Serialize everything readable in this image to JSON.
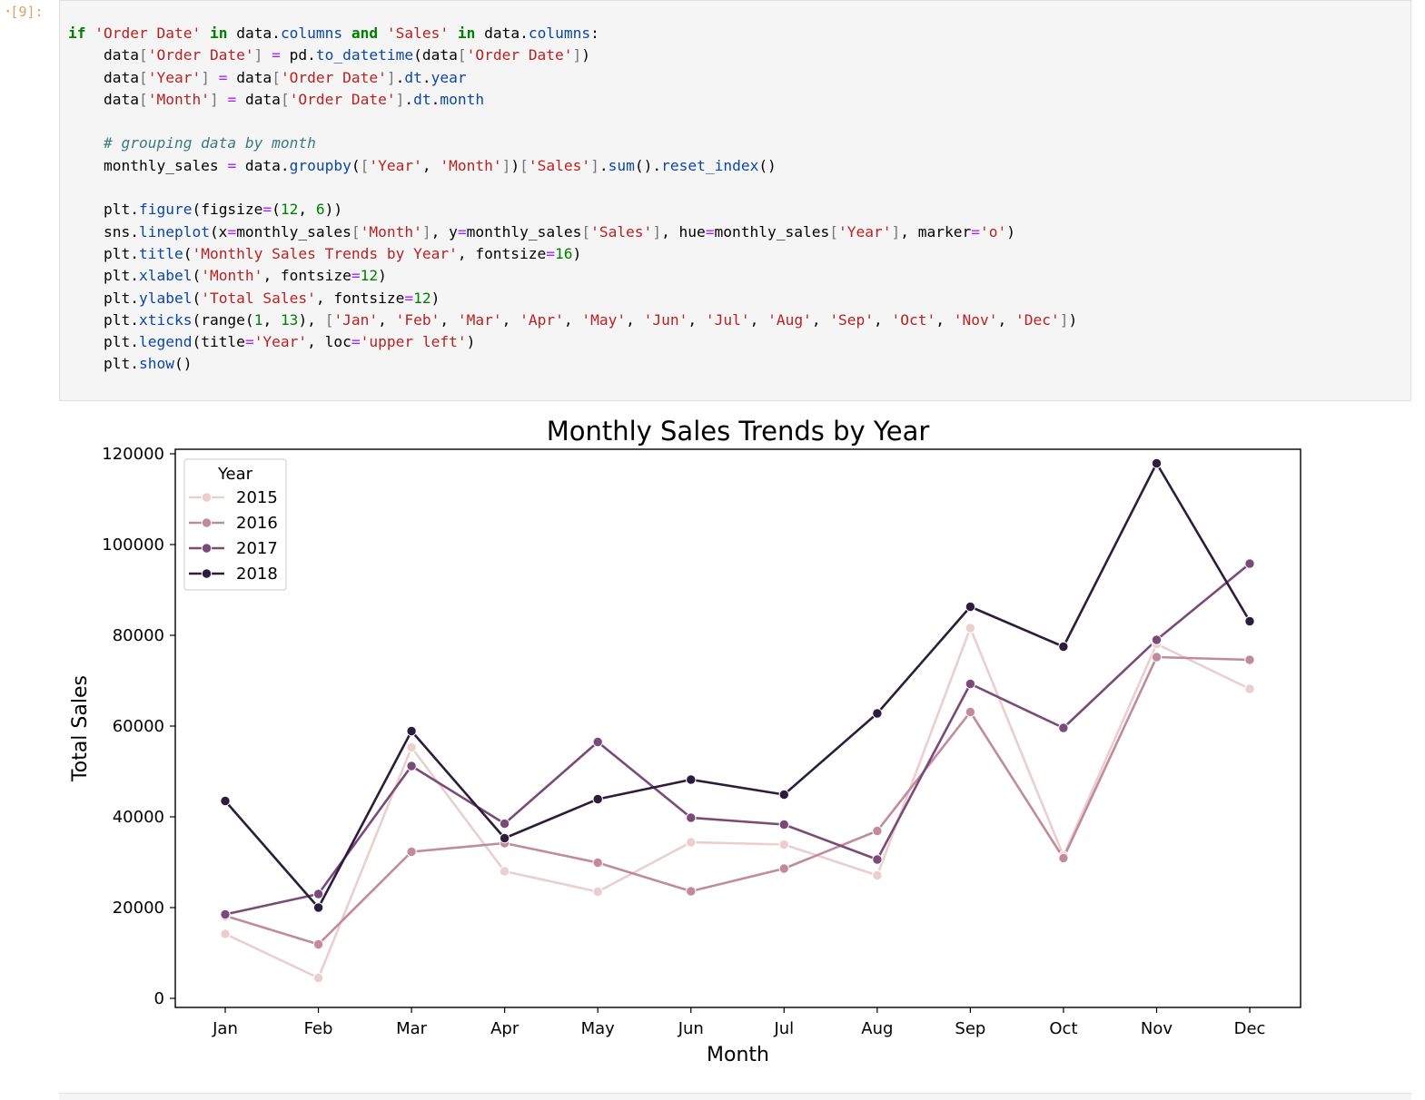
{
  "cell": {
    "prompt": "[9]:",
    "code_lines": [
      [
        [
          "kw",
          "if"
        ],
        [
          "t",
          " "
        ],
        [
          "str",
          "'Order Date'"
        ],
        [
          "t",
          " "
        ],
        [
          "kw",
          "in"
        ],
        [
          "t",
          " data."
        ],
        [
          "attr",
          "columns"
        ],
        [
          "t",
          " "
        ],
        [
          "kw",
          "and"
        ],
        [
          "t",
          " "
        ],
        [
          "str",
          "'Sales'"
        ],
        [
          "t",
          " "
        ],
        [
          "kw",
          "in"
        ],
        [
          "t",
          " data."
        ],
        [
          "attr",
          "columns"
        ],
        [
          "t",
          ":"
        ]
      ],
      [
        [
          "t",
          "    data"
        ],
        [
          "br",
          "["
        ],
        [
          "str",
          "'Order Date'"
        ],
        [
          "br",
          "]"
        ],
        [
          "t",
          " "
        ],
        [
          "op",
          "="
        ],
        [
          "t",
          " pd."
        ],
        [
          "attr",
          "to_datetime"
        ],
        [
          "t",
          "(data"
        ],
        [
          "br",
          "["
        ],
        [
          "str",
          "'Order Date'"
        ],
        [
          "br",
          "]"
        ],
        [
          "t",
          ")"
        ]
      ],
      [
        [
          "t",
          "    data"
        ],
        [
          "br",
          "["
        ],
        [
          "str",
          "'Year'"
        ],
        [
          "br",
          "]"
        ],
        [
          "t",
          " "
        ],
        [
          "op",
          "="
        ],
        [
          "t",
          " data"
        ],
        [
          "br",
          "["
        ],
        [
          "str",
          "'Order Date'"
        ],
        [
          "br",
          "]"
        ],
        [
          "t",
          "."
        ],
        [
          "attr",
          "dt"
        ],
        [
          "t",
          "."
        ],
        [
          "attr",
          "year"
        ]
      ],
      [
        [
          "t",
          "    data"
        ],
        [
          "br",
          "["
        ],
        [
          "str",
          "'Month'"
        ],
        [
          "br",
          "]"
        ],
        [
          "t",
          " "
        ],
        [
          "op",
          "="
        ],
        [
          "t",
          " data"
        ],
        [
          "br",
          "["
        ],
        [
          "str",
          "'Order Date'"
        ],
        [
          "br",
          "]"
        ],
        [
          "t",
          "."
        ],
        [
          "attr",
          "dt"
        ],
        [
          "t",
          "."
        ],
        [
          "attr",
          "month"
        ]
      ],
      [],
      [
        [
          "t",
          "    "
        ],
        [
          "cm",
          "# grouping data by month"
        ]
      ],
      [
        [
          "t",
          "    monthly_sales "
        ],
        [
          "op",
          "="
        ],
        [
          "t",
          " data."
        ],
        [
          "attr",
          "groupby"
        ],
        [
          "t",
          "("
        ],
        [
          "br",
          "["
        ],
        [
          "str",
          "'Year'"
        ],
        [
          "t",
          ", "
        ],
        [
          "str",
          "'Month'"
        ],
        [
          "br",
          "]"
        ],
        [
          "t",
          ")"
        ],
        [
          "br",
          "["
        ],
        [
          "str",
          "'Sales'"
        ],
        [
          "br",
          "]"
        ],
        [
          "t",
          "."
        ],
        [
          "attr",
          "sum"
        ],
        [
          "t",
          "()."
        ],
        [
          "attr",
          "reset_index"
        ],
        [
          "t",
          "()"
        ]
      ],
      [],
      [
        [
          "t",
          "    plt."
        ],
        [
          "attr",
          "figure"
        ],
        [
          "t",
          "(figsize"
        ],
        [
          "op",
          "="
        ],
        [
          "t",
          "("
        ],
        [
          "num",
          "12"
        ],
        [
          "t",
          ", "
        ],
        [
          "num",
          "6"
        ],
        [
          "t",
          "))"
        ]
      ],
      [
        [
          "t",
          "    sns."
        ],
        [
          "attr",
          "lineplot"
        ],
        [
          "t",
          "(x"
        ],
        [
          "op",
          "="
        ],
        [
          "t",
          "monthly_sales"
        ],
        [
          "br",
          "["
        ],
        [
          "str",
          "'Month'"
        ],
        [
          "br",
          "]"
        ],
        [
          "t",
          ", y"
        ],
        [
          "op",
          "="
        ],
        [
          "t",
          "monthly_sales"
        ],
        [
          "br",
          "["
        ],
        [
          "str",
          "'Sales'"
        ],
        [
          "br",
          "]"
        ],
        [
          "t",
          ", hue"
        ],
        [
          "op",
          "="
        ],
        [
          "t",
          "monthly_sales"
        ],
        [
          "br",
          "["
        ],
        [
          "str",
          "'Year'"
        ],
        [
          "br",
          "]"
        ],
        [
          "t",
          ", marker"
        ],
        [
          "op",
          "="
        ],
        [
          "str",
          "'o'"
        ],
        [
          "t",
          ")"
        ]
      ],
      [
        [
          "t",
          "    plt."
        ],
        [
          "attr",
          "title"
        ],
        [
          "t",
          "("
        ],
        [
          "str",
          "'Monthly Sales Trends by Year'"
        ],
        [
          "t",
          ", fontsize"
        ],
        [
          "op",
          "="
        ],
        [
          "num",
          "16"
        ],
        [
          "t",
          ")"
        ]
      ],
      [
        [
          "t",
          "    plt."
        ],
        [
          "attr",
          "xlabel"
        ],
        [
          "t",
          "("
        ],
        [
          "str",
          "'Month'"
        ],
        [
          "t",
          ", fontsize"
        ],
        [
          "op",
          "="
        ],
        [
          "num",
          "12"
        ],
        [
          "t",
          ")"
        ]
      ],
      [
        [
          "t",
          "    plt."
        ],
        [
          "attr",
          "ylabel"
        ],
        [
          "t",
          "("
        ],
        [
          "str",
          "'Total Sales'"
        ],
        [
          "t",
          ", fontsize"
        ],
        [
          "op",
          "="
        ],
        [
          "num",
          "12"
        ],
        [
          "t",
          ")"
        ]
      ],
      [
        [
          "t",
          "    plt."
        ],
        [
          "attr",
          "xticks"
        ],
        [
          "t",
          "(range("
        ],
        [
          "num",
          "1"
        ],
        [
          "t",
          ", "
        ],
        [
          "num",
          "13"
        ],
        [
          "t",
          "), "
        ],
        [
          "br",
          "["
        ],
        [
          "str",
          "'Jan'"
        ],
        [
          "t",
          ", "
        ],
        [
          "str",
          "'Feb'"
        ],
        [
          "t",
          ", "
        ],
        [
          "str",
          "'Mar'"
        ],
        [
          "t",
          ", "
        ],
        [
          "str",
          "'Apr'"
        ],
        [
          "t",
          ", "
        ],
        [
          "str",
          "'May'"
        ],
        [
          "t",
          ", "
        ],
        [
          "str",
          "'Jun'"
        ],
        [
          "t",
          ", "
        ],
        [
          "str",
          "'Jul'"
        ],
        [
          "t",
          ", "
        ],
        [
          "str",
          "'Aug'"
        ],
        [
          "t",
          ", "
        ],
        [
          "str",
          "'Sep'"
        ],
        [
          "t",
          ", "
        ],
        [
          "str",
          "'Oct'"
        ],
        [
          "t",
          ", "
        ],
        [
          "str",
          "'Nov'"
        ],
        [
          "t",
          ", "
        ],
        [
          "str",
          "'Dec'"
        ],
        [
          "br",
          "]"
        ],
        [
          "t",
          ")"
        ]
      ],
      [
        [
          "t",
          "    plt."
        ],
        [
          "attr",
          "legend"
        ],
        [
          "t",
          "(title"
        ],
        [
          "op",
          "="
        ],
        [
          "str",
          "'Year'"
        ],
        [
          "t",
          ", loc"
        ],
        [
          "op",
          "="
        ],
        [
          "str",
          "'upper left'"
        ],
        [
          "t",
          ")"
        ]
      ],
      [
        [
          "t",
          "    plt."
        ],
        [
          "attr",
          "show"
        ],
        [
          "t",
          "()"
        ]
      ]
    ]
  },
  "chart_data": {
    "type": "line",
    "title": "Monthly Sales Trends by Year",
    "xlabel": "Month",
    "ylabel": "Total Sales",
    "categories": [
      "Jan",
      "Feb",
      "Mar",
      "Apr",
      "May",
      "Jun",
      "Jul",
      "Aug",
      "Sep",
      "Oct",
      "Nov",
      "Dec"
    ],
    "ylim": [
      -2000,
      121000
    ],
    "yticks": [
      0,
      20000,
      40000,
      60000,
      80000,
      100000,
      120000
    ],
    "legend_title": "Year",
    "legend_position": "upper left",
    "grid": false,
    "marker": "o",
    "series": [
      {
        "name": "2015",
        "color": "#ebcfcc",
        "values": [
          14200,
          4500,
          55300,
          28000,
          23500,
          34400,
          33900,
          27100,
          81600,
          31400,
          78100,
          68200
        ]
      },
      {
        "name": "2016",
        "color": "#c18b9c",
        "values": [
          18200,
          11900,
          32300,
          34200,
          29900,
          23600,
          28600,
          36900,
          63100,
          30900,
          75200,
          74600
        ]
      },
      {
        "name": "2017",
        "color": "#7a4a78",
        "values": [
          18500,
          23000,
          51200,
          38500,
          56500,
          39800,
          38300,
          30600,
          69300,
          59600,
          79000,
          95800
        ]
      },
      {
        "name": "2018",
        "color": "#2b1d3b",
        "values": [
          43500,
          20000,
          58900,
          35300,
          43900,
          48200,
          44900,
          62800,
          86300,
          77500,
          117900,
          83100
        ]
      }
    ]
  }
}
